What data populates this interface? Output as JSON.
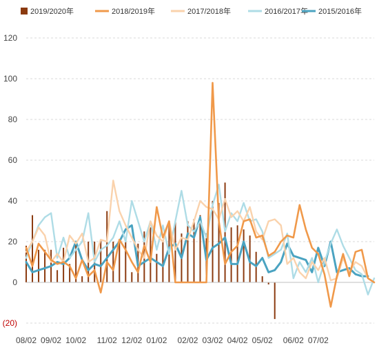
{
  "chart_data": {
    "type": "bar+line",
    "title": "",
    "xlabel": "",
    "ylabel": "",
    "ylim": [
      -20,
      120
    ],
    "yticks": [
      {
        "value": 120,
        "label": "120"
      },
      {
        "value": 100,
        "label": "100"
      },
      {
        "value": 80,
        "label": "80"
      },
      {
        "value": 60,
        "label": "60"
      },
      {
        "value": 40,
        "label": "40"
      },
      {
        "value": 20,
        "label": "20"
      },
      {
        "value": 0,
        "label": "0"
      },
      {
        "value": -20,
        "label": "(20)"
      }
    ],
    "xticks": [
      {
        "index": 0,
        "label": "08/02"
      },
      {
        "index": 4,
        "label": "09/02"
      },
      {
        "index": 8,
        "label": "10/02"
      },
      {
        "index": 13,
        "label": "11/02"
      },
      {
        "index": 17,
        "label": "12/02"
      },
      {
        "index": 21,
        "label": "01/02"
      },
      {
        "index": 26,
        "label": "02/02"
      },
      {
        "index": 30,
        "label": "03/02"
      },
      {
        "index": 34,
        "label": "04/02"
      },
      {
        "index": 38,
        "label": "05/02"
      },
      {
        "index": 43,
        "label": "06/02"
      },
      {
        "index": 47,
        "label": "07/02"
      }
    ],
    "legend_position": "top",
    "grid": "horizontal-dashed",
    "series": [
      {
        "name": "2019/2020年",
        "kind": "bar",
        "color": "#8b3a0f",
        "values": [
          18,
          33,
          16,
          16,
          16,
          6,
          17,
          9,
          19,
          3,
          20,
          20,
          21,
          35,
          20,
          20,
          22,
          5,
          19,
          25,
          27,
          14,
          20,
          28,
          30,
          24,
          30,
          31,
          33,
          24,
          40,
          39,
          49,
          27,
          28,
          26,
          23,
          15,
          3,
          -1,
          -18
        ]
      },
      {
        "name": "2018/2019年",
        "kind": "line",
        "color": "#f0994a",
        "values": [
          17,
          8,
          19,
          15,
          11,
          9,
          10,
          8,
          2,
          11,
          3,
          6,
          -5,
          10,
          6,
          21,
          16,
          10,
          5,
          18,
          10,
          37,
          22,
          30,
          0,
          0,
          0,
          0,
          0,
          0,
          98,
          30,
          9,
          15,
          18,
          30,
          31,
          22,
          23,
          13,
          15,
          20,
          23,
          22,
          38,
          26,
          17,
          14,
          4,
          -12,
          3,
          14,
          3,
          15,
          16,
          2,
          0
        ]
      },
      {
        "name": "2017/2018年",
        "kind": "line",
        "color": "#fad2ac",
        "values": [
          15,
          20,
          27,
          23,
          10,
          14,
          10,
          23,
          19,
          24,
          10,
          12,
          21,
          20,
          50,
          35,
          28,
          22,
          16,
          12,
          30,
          23,
          20,
          30,
          16,
          22,
          21,
          30,
          40,
          37,
          36,
          31,
          41,
          32,
          35,
          30,
          37,
          25,
          21,
          30,
          31,
          28,
          9,
          12,
          5,
          2,
          10,
          6,
          12,
          1,
          2,
          12,
          5,
          10,
          8,
          2,
          0
        ]
      },
      {
        "name": "2016/2017年",
        "kind": "line",
        "color": "#aedce6",
        "values": [
          12,
          20,
          28,
          32,
          34,
          12,
          22,
          12,
          16,
          20,
          34,
          10,
          16,
          18,
          22,
          30,
          20,
          40,
          30,
          20,
          30,
          16,
          28,
          14,
          30,
          45,
          28,
          25,
          30,
          22,
          38,
          48,
          25,
          34,
          30,
          39,
          30,
          31,
          25,
          12,
          14,
          16,
          24,
          2,
          10,
          5,
          12,
          0,
          10,
          19,
          26,
          18,
          12,
          6,
          4,
          -6,
          2
        ]
      },
      {
        "name": "2015/2016年",
        "kind": "line",
        "color": "#4aa3c1",
        "values": [
          10,
          5,
          6,
          7,
          8,
          10,
          9,
          12,
          20,
          11,
          6,
          9,
          8,
          12,
          16,
          20,
          26,
          28,
          8,
          10,
          12,
          10,
          8,
          17,
          19,
          12,
          24,
          22,
          32,
          11,
          17,
          19,
          22,
          9,
          9,
          20,
          10,
          8,
          12,
          5,
          6,
          10,
          19,
          13,
          12,
          11,
          5,
          17,
          8,
          20,
          5,
          6,
          7,
          4,
          3,
          3
        ]
      }
    ]
  }
}
